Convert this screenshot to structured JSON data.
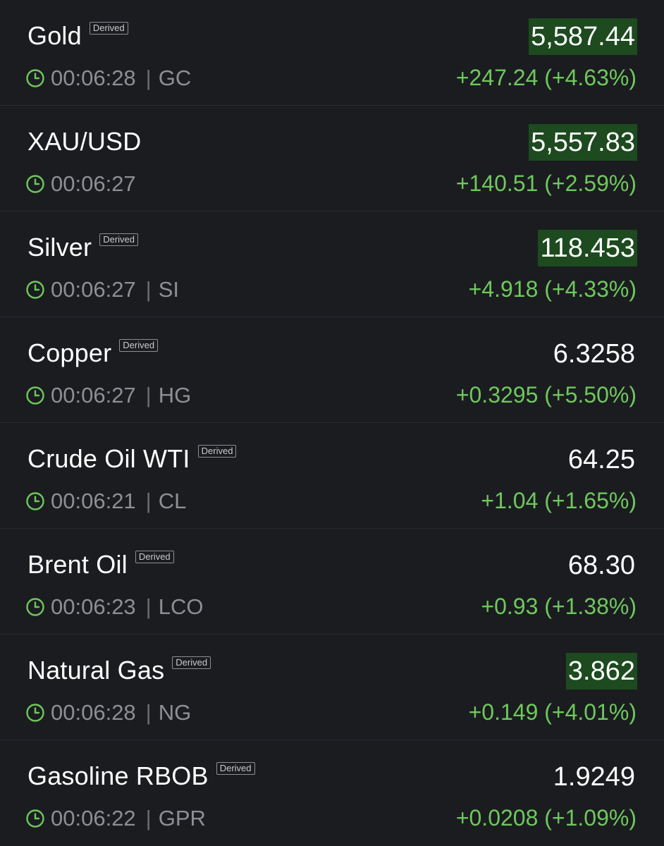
{
  "colors": {
    "background": "#1b1c20",
    "positive": "#6ec85c",
    "highlight": "#1d4a1f",
    "muted": "#8e8f94"
  },
  "icons": {
    "clock": "clock-icon"
  },
  "rows": [
    {
      "name": "Gold",
      "badge": "Derived",
      "time": "00:06:28",
      "symbol": "GC",
      "price": "5,587.44",
      "highlight": true,
      "change": "+247.24 (+4.63%)"
    },
    {
      "name": "XAU/USD",
      "badge": "",
      "time": "00:06:27",
      "symbol": "",
      "price": "5,557.83",
      "highlight": true,
      "change": "+140.51 (+2.59%)"
    },
    {
      "name": "Silver",
      "badge": "Derived",
      "time": "00:06:27",
      "symbol": "SI",
      "price": "118.453",
      "highlight": true,
      "change": "+4.918 (+4.33%)"
    },
    {
      "name": "Copper",
      "badge": "Derived",
      "time": "00:06:27",
      "symbol": "HG",
      "price": "6.3258",
      "highlight": false,
      "change": "+0.3295 (+5.50%)"
    },
    {
      "name": "Crude Oil WTI",
      "badge": "Derived",
      "time": "00:06:21",
      "symbol": "CL",
      "price": "64.25",
      "highlight": false,
      "change": "+1.04 (+1.65%)"
    },
    {
      "name": "Brent Oil",
      "badge": "Derived",
      "time": "00:06:23",
      "symbol": "LCO",
      "price": "68.30",
      "highlight": false,
      "change": "+0.93 (+1.38%)"
    },
    {
      "name": "Natural Gas",
      "badge": "Derived",
      "time": "00:06:28",
      "symbol": "NG",
      "price": "3.862",
      "highlight": true,
      "change": "+0.149 (+4.01%)"
    },
    {
      "name": "Gasoline RBOB",
      "badge": "Derived",
      "time": "00:06:22",
      "symbol": "GPR",
      "price": "1.9249",
      "highlight": false,
      "change": "+0.0208 (+1.09%)"
    }
  ]
}
